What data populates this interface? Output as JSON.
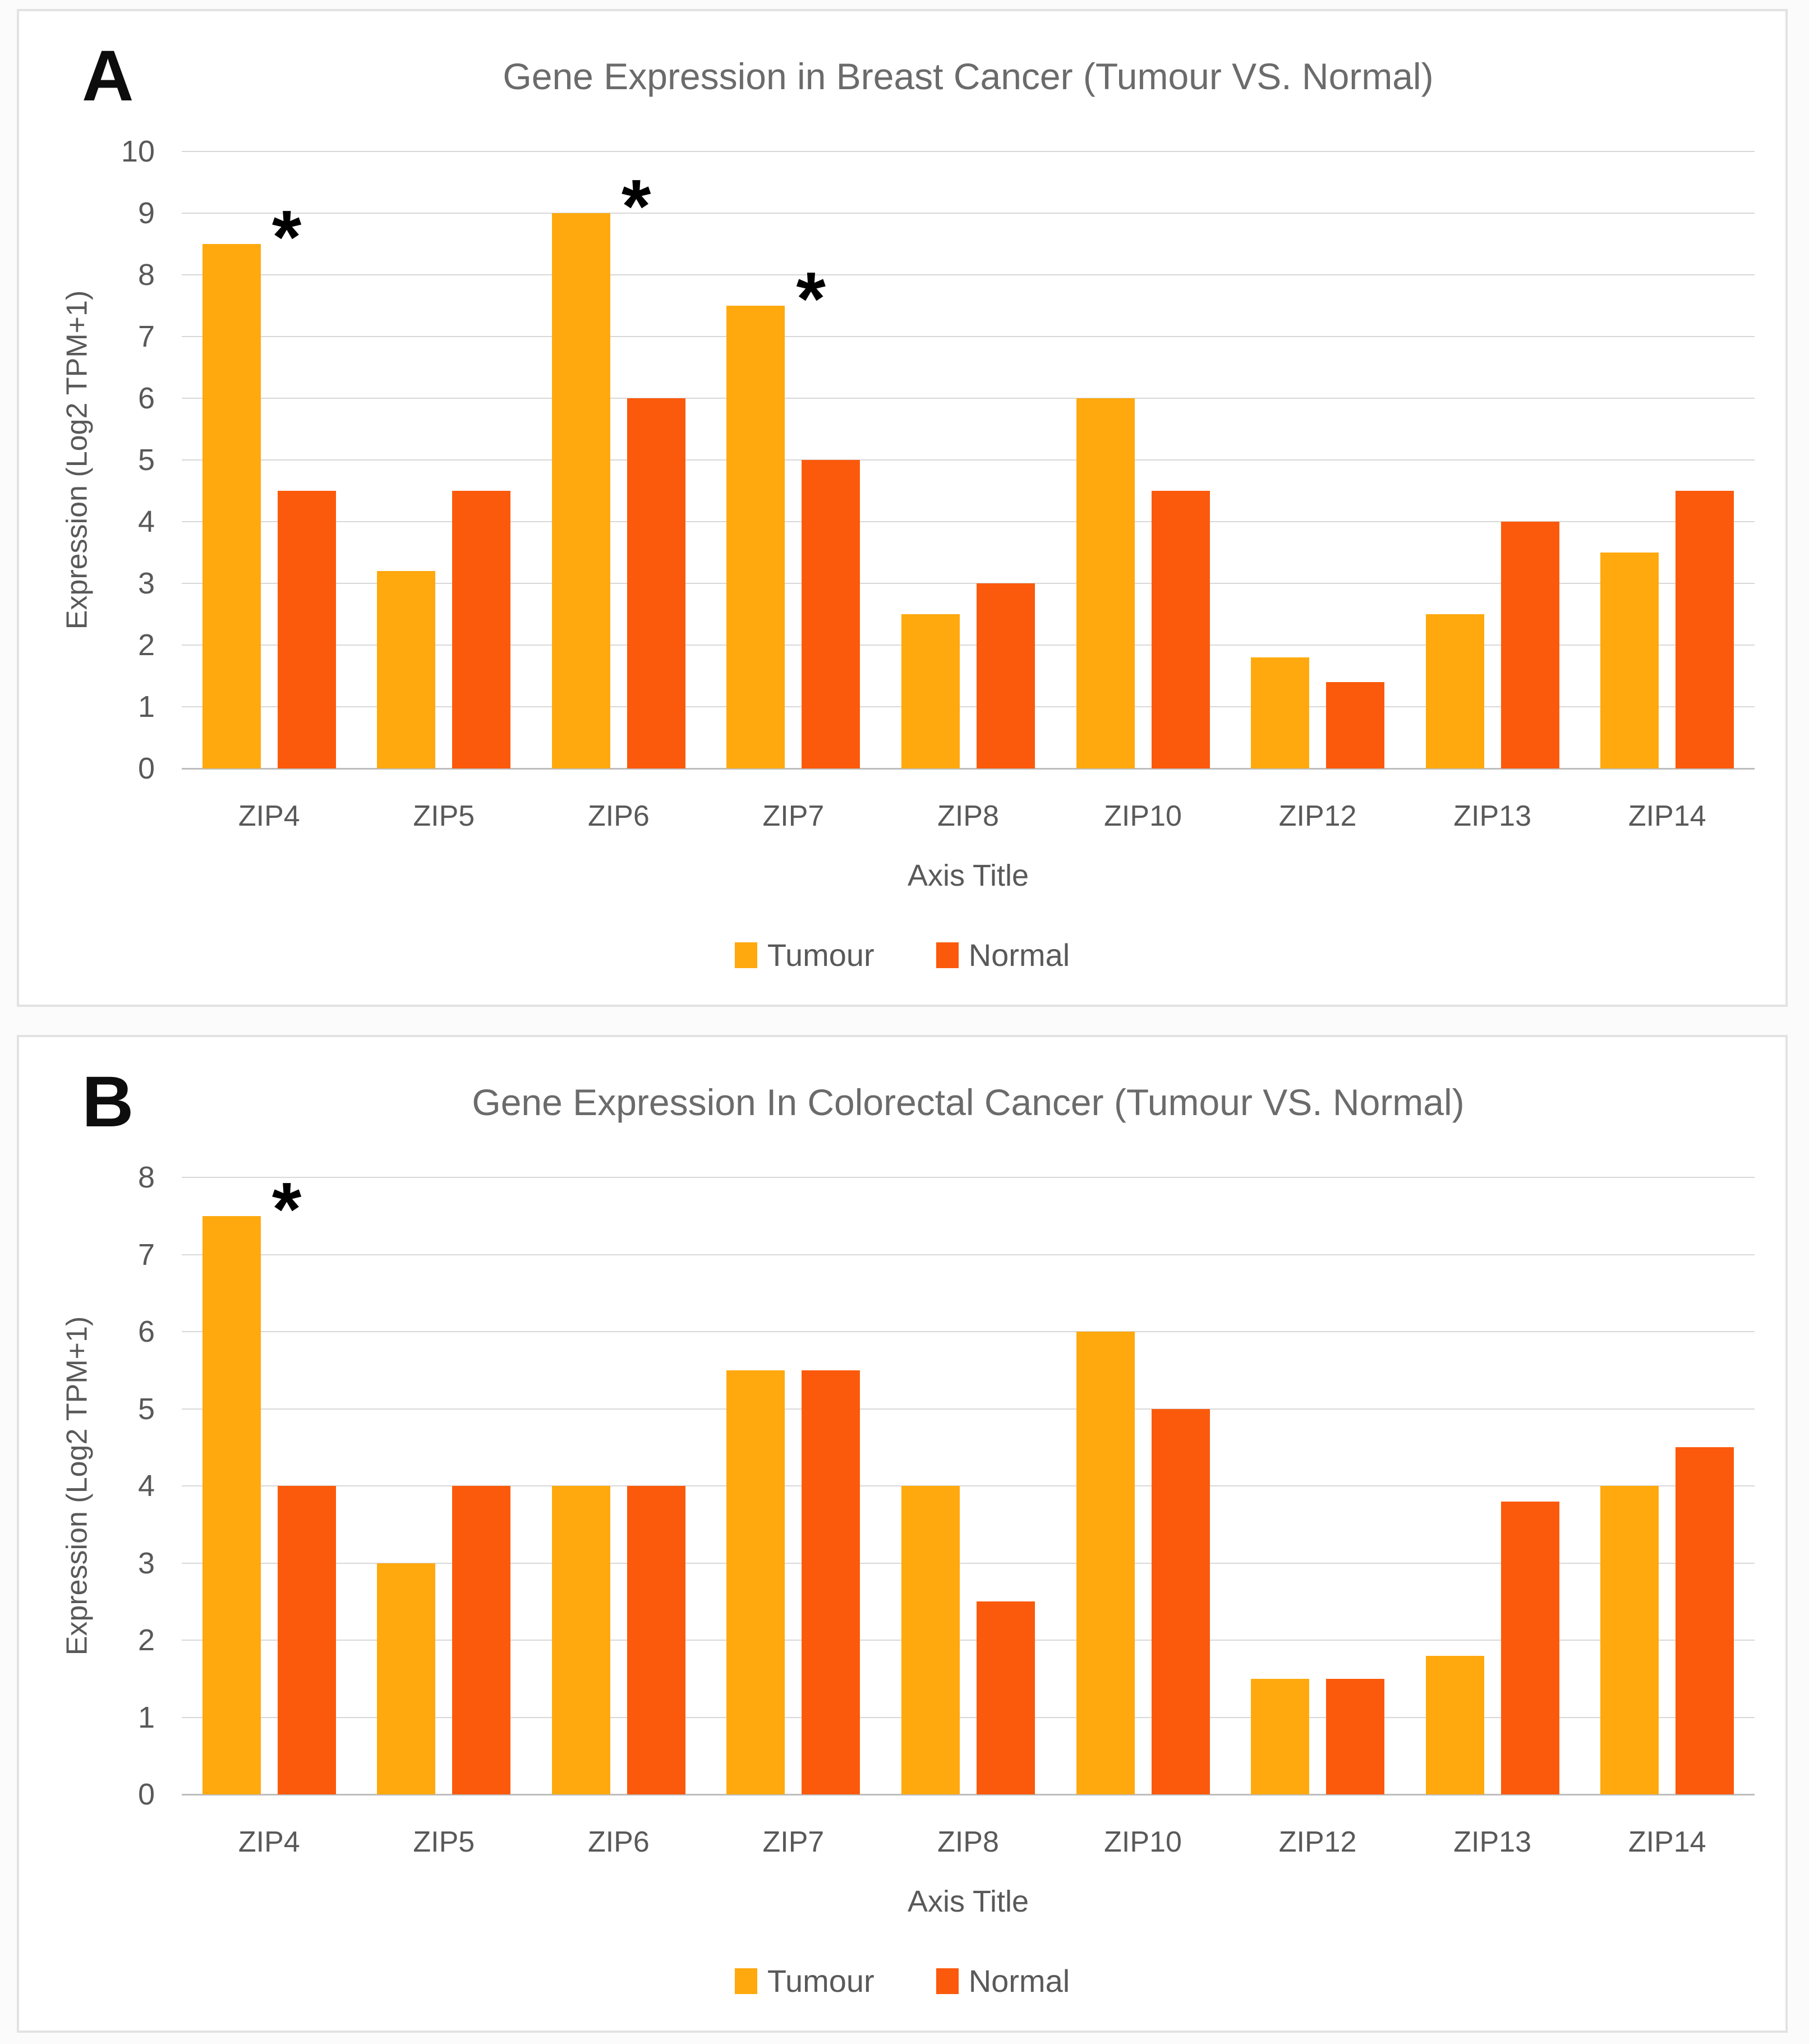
{
  "colors": {
    "tumour": "#FFA90E",
    "normal": "#FB5A0C",
    "grid": "#D8D8D8",
    "axis_line": "#BDBDBD",
    "axis_text": "#595959",
    "title_text": "#6B6B6B",
    "asterisk": "#000000",
    "panel_background": "#FFFFFF",
    "panel_border": "#E2E2E2"
  },
  "sig_marker": "*",
  "chart_data": [
    {
      "type": "bar",
      "panel_letter": "A",
      "title": "Gene Expression in Breast Cancer (Tumour VS. Normal)",
      "xlabel": "Axis Title",
      "ylabel": "Expression (Log2 TPM+1)",
      "ylim": [
        0,
        10
      ],
      "ytick_step": 1,
      "grid": true,
      "legend_position": "bottom",
      "categories": [
        "ZIP4",
        "ZIP5",
        "ZIP6",
        "ZIP7",
        "ZIP8",
        "ZIP10",
        "ZIP12",
        "ZIP13",
        "ZIP14"
      ],
      "series": [
        {
          "name": "Tumour",
          "values": [
            8.5,
            3.2,
            9,
            7.5,
            2.5,
            6,
            1.8,
            2.5,
            3.5
          ]
        },
        {
          "name": "Normal",
          "values": [
            4.5,
            4.5,
            6,
            5,
            3,
            4.5,
            1.4,
            4,
            4.5
          ]
        }
      ],
      "significant": [
        "ZIP4",
        "ZIP6",
        "ZIP7"
      ]
    },
    {
      "type": "bar",
      "panel_letter": "B",
      "title": "Gene Expression In Colorectal Cancer (Tumour VS. Normal)",
      "xlabel": "Axis Title",
      "ylabel": "Expression (Log2 TPM+1)",
      "ylim": [
        0,
        8
      ],
      "ytick_step": 1,
      "grid": true,
      "legend_position": "bottom",
      "categories": [
        "ZIP4",
        "ZIP5",
        "ZIP6",
        "ZIP7",
        "ZIP8",
        "ZIP10",
        "ZIP12",
        "ZIP13",
        "ZIP14"
      ],
      "series": [
        {
          "name": "Tumour",
          "values": [
            7.5,
            3,
            4,
            5.5,
            4,
            6,
            1.5,
            1.8,
            4
          ]
        },
        {
          "name": "Normal",
          "values": [
            4,
            4,
            4,
            5.5,
            2.5,
            5,
            1.5,
            3.8,
            4.5
          ]
        }
      ],
      "significant": [
        "ZIP4"
      ]
    }
  ]
}
